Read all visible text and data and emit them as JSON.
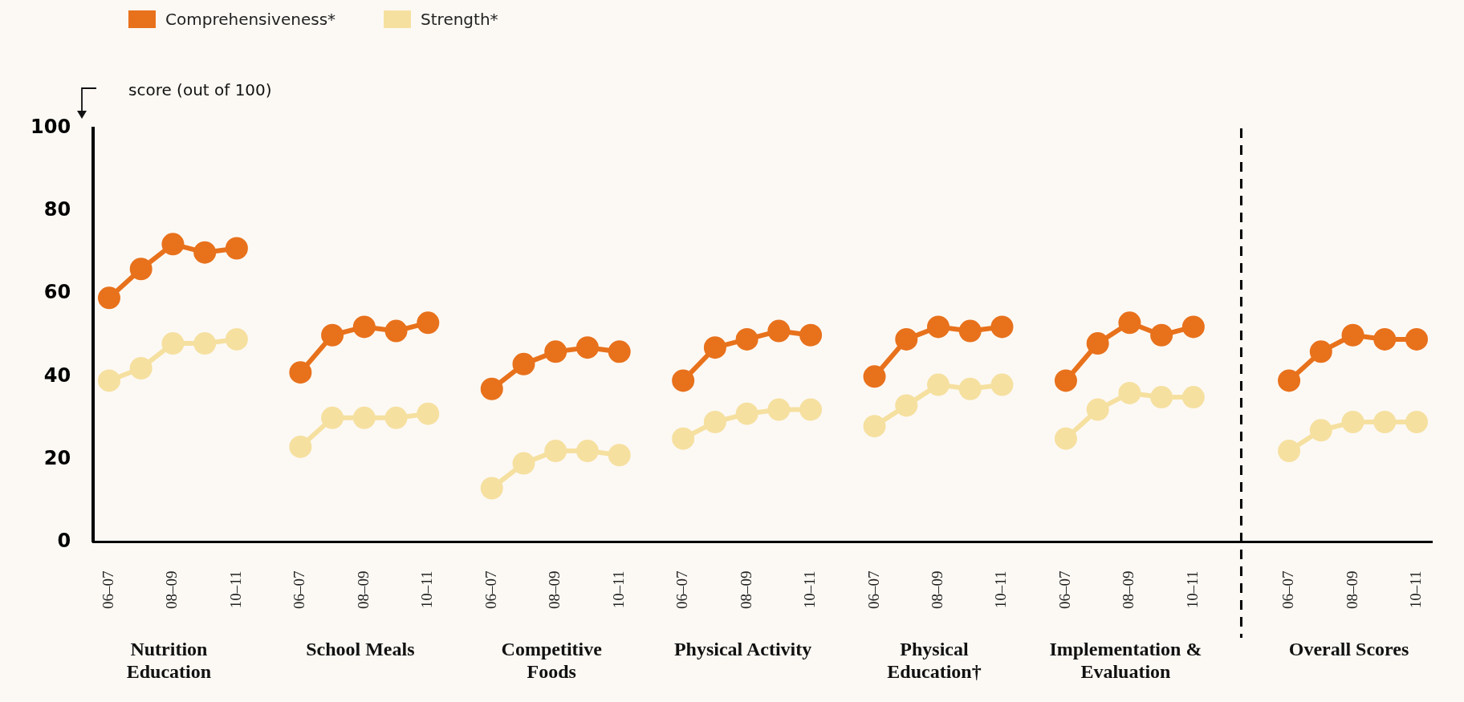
{
  "chart_data": {
    "type": "line",
    "ylabel": "score (out of 100)",
    "categories": [
      "06–07",
      null,
      "08–09",
      null,
      "10–11",
      null,
      "06–07",
      null,
      "08–09",
      null,
      "10–11",
      null,
      "06–07",
      null,
      "08–09",
      null,
      "10–11",
      null,
      "06–07",
      null,
      "08–09",
      null,
      "10–11",
      null,
      "06–07",
      null,
      "08–09",
      null,
      "10–11",
      null,
      "06–07",
      null,
      "08–09",
      null,
      "10–11",
      null,
      null,
      "06–07",
      null,
      "08–09",
      null,
      "10–11"
    ],
    "series": [
      {
        "name": "Comprehensiveness*",
        "color": "#e8711c",
        "values": [
          59,
          66,
          72,
          70,
          71,
          null,
          41,
          50,
          52,
          51,
          53,
          null,
          37,
          43,
          46,
          47,
          46,
          null,
          39,
          47,
          49,
          51,
          50,
          null,
          40,
          49,
          52,
          51,
          52,
          null,
          39,
          48,
          53,
          50,
          52,
          null,
          null,
          39,
          46,
          50,
          49,
          49
        ]
      },
      {
        "name": "Strength*",
        "color": "#f6e0a0",
        "values": [
          39,
          42,
          48,
          48,
          49,
          null,
          23,
          30,
          30,
          30,
          31,
          null,
          13,
          19,
          22,
          22,
          21,
          null,
          25,
          29,
          31,
          32,
          32,
          null,
          28,
          33,
          38,
          37,
          38,
          null,
          25,
          32,
          36,
          35,
          35,
          null,
          null,
          22,
          27,
          29,
          29,
          29
        ]
      }
    ],
    "ylim": [
      0,
      100
    ],
    "yticks": [
      0,
      20,
      40,
      60,
      80,
      100
    ],
    "grid": false,
    "legend": "top left",
    "marker": "circle",
    "line_style": "solid",
    "annotations": [
      "Nutrition Education",
      "School Meals",
      "Competitive Foods",
      "Physical Activity",
      "Physical Education†",
      "Implementation & Evaluation",
      "Overall Scores"
    ]
  }
}
